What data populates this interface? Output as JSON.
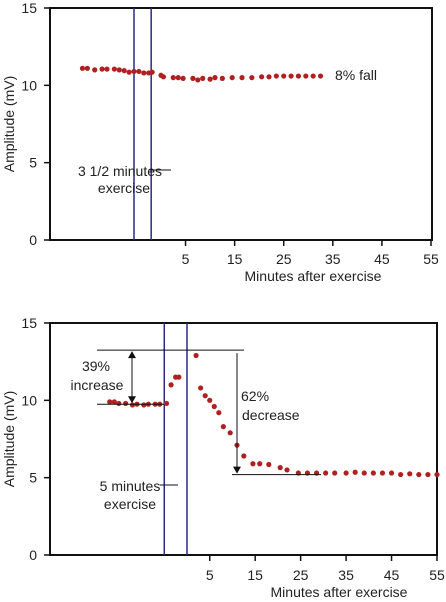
{
  "colors": {
    "points": "#b02020",
    "exercise_lines": "#2a2a8a",
    "frame": "#111111",
    "annotation_lines": "#111111"
  },
  "chart_data": [
    {
      "type": "scatter",
      "title": "",
      "ylabel": "Amplitude (mV)",
      "xlabel": "Minutes after exercise",
      "ylim": [
        0,
        15
      ],
      "xlim": [
        -24,
        55
      ],
      "y_ticks": [
        "0",
        "5",
        "10",
        "15"
      ],
      "x_ticks": [
        "5",
        "15",
        "25",
        "35",
        "45",
        "55"
      ],
      "grid": false,
      "exercise_window": [
        -5.5,
        -2
      ],
      "series": [
        {
          "x": [
            -16,
            -15,
            -13.5,
            -12,
            -11,
            -9.5,
            -8.5,
            -7.5,
            -6.5,
            -5.5,
            -4.5,
            -3.5,
            -2.5,
            -1.8,
            0,
            0.5,
            2.5,
            3.5,
            4.5,
            6.5,
            7.5,
            8.5,
            10,
            11,
            12.5,
            14.5,
            16.5,
            18.5,
            20.5,
            22,
            23.5,
            25,
            26.5,
            28,
            29.5,
            31,
            32.5
          ],
          "y": [
            11.1,
            11.1,
            11.0,
            11.05,
            11.05,
            11.05,
            11.0,
            10.95,
            10.85,
            10.9,
            10.9,
            10.8,
            10.8,
            10.85,
            10.65,
            10.55,
            10.5,
            10.5,
            10.45,
            10.45,
            10.35,
            10.45,
            10.4,
            10.5,
            10.45,
            10.5,
            10.5,
            10.5,
            10.55,
            10.55,
            10.6,
            10.6,
            10.6,
            10.6,
            10.6,
            10.6,
            10.6
          ]
        }
      ],
      "annotations": {
        "exercise_label_line1": "3 1/2 minutes",
        "exercise_label_line2": "exercise",
        "fall_label": "8% fall"
      }
    },
    {
      "type": "scatter",
      "title": "",
      "ylabel": "Amplitude (mV)",
      "xlabel": "Minutes after exercise",
      "ylim": [
        0,
        15
      ],
      "xlim": [
        -24,
        55
      ],
      "y_ticks": [
        "0",
        "5",
        "10",
        "15"
      ],
      "x_ticks": [
        "5",
        "15",
        "25",
        "35",
        "45",
        "55"
      ],
      "grid": false,
      "exercise_window": [
        -5,
        0
      ],
      "series": [
        {
          "x": [
            -17,
            -16,
            -15,
            -13.5,
            -12,
            -11,
            -9.5,
            -8.5,
            -7,
            -6,
            -4.5,
            -3.5,
            -2.5,
            -1.8,
            2,
            3,
            4,
            5,
            6,
            7,
            8,
            9.5,
            11,
            12.5,
            14.5,
            16,
            18,
            20.5,
            22,
            24.5,
            26.5,
            28.5,
            30.5,
            32.5,
            35,
            37,
            39,
            41,
            43,
            45,
            47,
            49,
            51,
            53,
            55
          ],
          "y": [
            9.9,
            9.9,
            9.8,
            9.8,
            9.7,
            9.75,
            9.7,
            9.75,
            9.75,
            9.75,
            9.8,
            11.0,
            11.5,
            11.5,
            12.9,
            10.8,
            10.3,
            10.0,
            9.6,
            9.2,
            8.3,
            7.9,
            7.1,
            6.4,
            5.9,
            5.9,
            5.85,
            5.65,
            5.5,
            5.3,
            5.3,
            5.3,
            5.3,
            5.3,
            5.3,
            5.35,
            5.3,
            5.3,
            5.3,
            5.3,
            5.2,
            5.25,
            5.2,
            5.2,
            5.2
          ]
        }
      ],
      "annotations": {
        "increase_label_line1": "39%",
        "increase_label_line2": "increase",
        "decrease_label_line1": "62%",
        "decrease_label_line2": "decrease",
        "exercise_label_line1": "5 minutes",
        "exercise_label_line2": "exercise"
      }
    }
  ]
}
